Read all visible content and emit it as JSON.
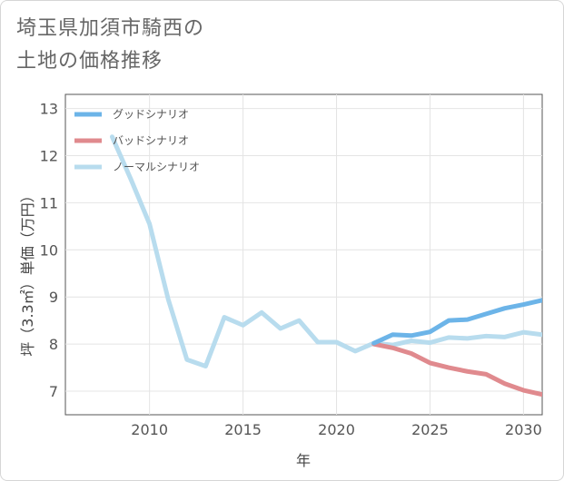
{
  "title_lines": [
    "埼玉県加須市騎西の",
    "土地の価格推移"
  ],
  "chart_data": {
    "type": "line",
    "title": "埼玉県加須市騎西の土地の価格推移",
    "xlabel": "年",
    "ylabel": "坪（3.3㎡）単価（万円）",
    "xlim": [
      2005.5,
      2031
    ],
    "ylim": [
      6.5,
      13.3
    ],
    "x_ticks": [
      2010,
      2015,
      2020,
      2025,
      2030
    ],
    "y_ticks": [
      7,
      8,
      9,
      10,
      11,
      12,
      13
    ],
    "grid": true,
    "legend_position": "top-left",
    "series": [
      {
        "name": "グッドシナリオ",
        "color": "#6cb4e8",
        "x": [
          2022,
          2023,
          2024,
          2025,
          2026,
          2027,
          2028,
          2029,
          2030,
          2031
        ],
        "values": [
          8.02,
          8.2,
          8.18,
          8.26,
          8.5,
          8.52,
          8.64,
          8.76,
          8.84,
          8.93
        ]
      },
      {
        "name": "バッドシナリオ",
        "color": "#e08a8e",
        "x": [
          2022,
          2023,
          2024,
          2025,
          2026,
          2027,
          2028,
          2029,
          2030,
          2031
        ],
        "values": [
          8.0,
          7.92,
          7.8,
          7.6,
          7.5,
          7.42,
          7.36,
          7.16,
          7.02,
          6.93
        ]
      },
      {
        "name": "ノーマルシナリオ",
        "color": "#b8dcee",
        "x": [
          2008,
          2009,
          2010,
          2011,
          2012,
          2013,
          2014,
          2015,
          2016,
          2017,
          2018,
          2019,
          2020,
          2021,
          2022,
          2023,
          2024,
          2025,
          2026,
          2027,
          2028,
          2029,
          2030,
          2031
        ],
        "values": [
          12.4,
          11.5,
          10.55,
          8.95,
          7.67,
          7.53,
          8.57,
          8.4,
          8.67,
          8.33,
          8.5,
          8.04,
          8.04,
          7.85,
          8.02,
          7.98,
          8.07,
          8.03,
          8.14,
          8.12,
          8.17,
          8.15,
          8.25,
          8.2
        ]
      }
    ]
  }
}
